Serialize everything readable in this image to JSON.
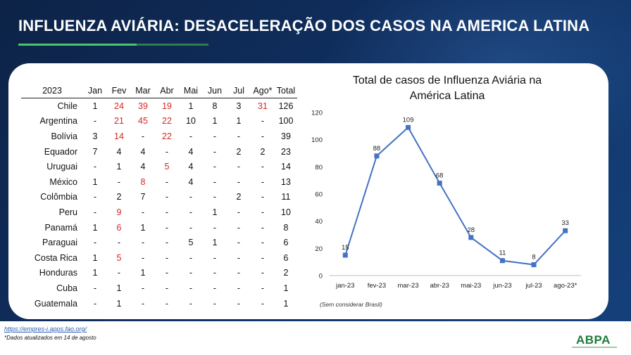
{
  "title": "INFLUENZA AVIÁRIA: DESACELERAÇÃO DOS CASOS NA AMERICA LATINA",
  "table": {
    "headers": [
      "2023",
      "Jan",
      "Fev",
      "Mar",
      "Abr",
      "Mai",
      "Jun",
      "Jul",
      "Ago*",
      "Total"
    ],
    "rows": [
      {
        "country": "Chile",
        "cells": [
          "1",
          "24",
          "39",
          "19",
          "1",
          "8",
          "3",
          "31",
          "126"
        ],
        "red": [
          false,
          true,
          true,
          true,
          false,
          false,
          false,
          true,
          false
        ]
      },
      {
        "country": "Argentina",
        "cells": [
          "-",
          "21",
          "45",
          "22",
          "10",
          "1",
          "1",
          "-",
          "100"
        ],
        "red": [
          false,
          true,
          true,
          true,
          false,
          false,
          false,
          false,
          false
        ]
      },
      {
        "country": "Bolívia",
        "cells": [
          "3",
          "14",
          "-",
          "22",
          "-",
          "-",
          "-",
          "-",
          "39"
        ],
        "red": [
          false,
          true,
          false,
          true,
          false,
          false,
          false,
          false,
          false
        ]
      },
      {
        "country": "Equador",
        "cells": [
          "7",
          "4",
          "4",
          "-",
          "4",
          "-",
          "2",
          "2",
          "23"
        ],
        "red": [
          false,
          false,
          false,
          false,
          false,
          false,
          false,
          false,
          false
        ]
      },
      {
        "country": "Uruguai",
        "cells": [
          "-",
          "1",
          "4",
          "5",
          "4",
          "-",
          "-",
          "-",
          "14"
        ],
        "red": [
          false,
          false,
          false,
          true,
          false,
          false,
          false,
          false,
          false
        ]
      },
      {
        "country": "México",
        "cells": [
          "1",
          "-",
          "8",
          "-",
          "4",
          "-",
          "-",
          "-",
          "13"
        ],
        "red": [
          false,
          false,
          true,
          false,
          false,
          false,
          false,
          false,
          false
        ]
      },
      {
        "country": "Colômbia",
        "cells": [
          "-",
          "2",
          "7",
          "-",
          "-",
          "-",
          "2",
          "-",
          "11"
        ],
        "red": [
          false,
          false,
          false,
          false,
          false,
          false,
          false,
          false,
          false
        ]
      },
      {
        "country": "Peru",
        "cells": [
          "-",
          "9",
          "-",
          "-",
          "-",
          "1",
          "-",
          "-",
          "10"
        ],
        "red": [
          false,
          true,
          false,
          false,
          false,
          false,
          false,
          false,
          false
        ]
      },
      {
        "country": "Panamá",
        "cells": [
          "1",
          "6",
          "1",
          "-",
          "-",
          "-",
          "-",
          "-",
          "8"
        ],
        "red": [
          false,
          true,
          false,
          false,
          false,
          false,
          false,
          false,
          false
        ]
      },
      {
        "country": "Paraguai",
        "cells": [
          "-",
          "-",
          "-",
          "-",
          "5",
          "1",
          "-",
          "-",
          "6"
        ],
        "red": [
          false,
          false,
          false,
          false,
          false,
          false,
          false,
          false,
          false
        ]
      },
      {
        "country": "Costa Rica",
        "cells": [
          "1",
          "5",
          "-",
          "-",
          "-",
          "-",
          "-",
          "-",
          "6"
        ],
        "red": [
          false,
          true,
          false,
          false,
          false,
          false,
          false,
          false,
          false
        ]
      },
      {
        "country": "Honduras",
        "cells": [
          "1",
          "-",
          "1",
          "-",
          "-",
          "-",
          "-",
          "-",
          "2"
        ],
        "red": [
          false,
          false,
          false,
          false,
          false,
          false,
          false,
          false,
          false
        ]
      },
      {
        "country": "Cuba",
        "cells": [
          "-",
          "1",
          "-",
          "-",
          "-",
          "-",
          "-",
          "-",
          "1"
        ],
        "red": [
          false,
          false,
          false,
          false,
          false,
          false,
          false,
          false,
          false
        ]
      },
      {
        "country": "Guatemala",
        "cells": [
          "-",
          "1",
          "-",
          "-",
          "-",
          "-",
          "-",
          "-",
          "1"
        ],
        "red": [
          false,
          false,
          false,
          false,
          false,
          false,
          false,
          false,
          false
        ]
      }
    ]
  },
  "chart_data": {
    "type": "line",
    "title_lines": [
      "Total de casos de Influenza Aviária na",
      "América Latina"
    ],
    "categories": [
      "jan-23",
      "fev-23",
      "mar-23",
      "abr-23",
      "mai-23",
      "jun-23",
      "jul-23",
      "ago-23*"
    ],
    "series": [
      {
        "values": [
          15,
          88,
          109,
          68,
          28,
          11,
          8,
          33
        ]
      }
    ],
    "ylim": [
      0,
      120
    ],
    "yticks": [
      0,
      20,
      40,
      60,
      80,
      100,
      120
    ],
    "grid": false,
    "line_color": "#4472c4",
    "note": "(Sem considerar Brasil)"
  },
  "footer": {
    "link": "https://empres-i.apps.fao.org/",
    "note": "*Dados atualizados em 14 de agosto",
    "logo": "ABPA"
  },
  "colors": {
    "highlight_red": "#d32a23",
    "navy": "#0f2d5c",
    "green": "#4cc46a"
  }
}
